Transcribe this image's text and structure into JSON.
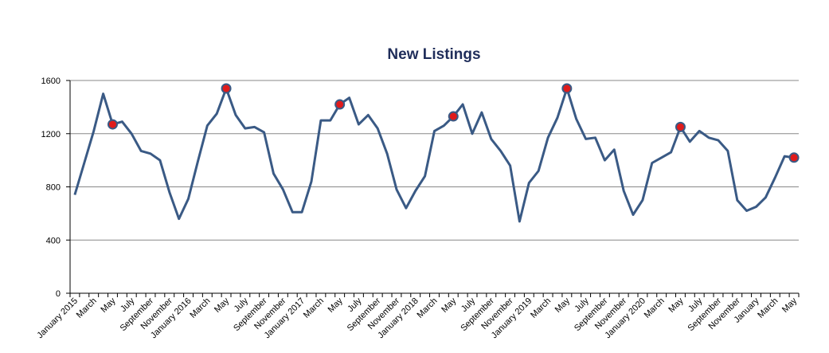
{
  "chart_data": {
    "type": "line",
    "title": "New Listings",
    "xlabel": "",
    "ylabel": "",
    "ylim": [
      0,
      1600
    ],
    "yticks": [
      "0",
      "400",
      "800",
      "1200",
      "1600"
    ],
    "grid": true,
    "line_color": "#3a5a85",
    "marker_color": "#e01b1b",
    "x": [
      "January 2015",
      "February 2015",
      "March 2015",
      "April 2015",
      "May 2015",
      "June 2015",
      "July 2015",
      "August 2015",
      "September 2015",
      "October 2015",
      "November 2015",
      "December 2015",
      "January 2016",
      "February 2016",
      "March 2016",
      "April 2016",
      "May 2016",
      "June 2016",
      "July 2016",
      "August 2016",
      "September 2016",
      "October 2016",
      "November 2016",
      "December 2016",
      "January 2017",
      "February 2017",
      "March 2017",
      "April 2017",
      "May 2017",
      "June 2017",
      "July 2017",
      "August 2017",
      "September 2017",
      "October 2017",
      "November 2017",
      "December 2017",
      "January 2018",
      "February 2018",
      "March 2018",
      "April 2018",
      "May 2018",
      "June 2018",
      "July 2018",
      "August 2018",
      "September 2018",
      "October 2018",
      "November 2018",
      "December 2018",
      "January 2019",
      "February 2019",
      "March 2019",
      "April 2019",
      "May 2019",
      "June 2019",
      "July 2019",
      "August 2019",
      "September 2019",
      "October 2019",
      "November 2019",
      "December 2019",
      "January 2020",
      "February 2020",
      "March 2020",
      "April 2020",
      "May 2020",
      "June 2020",
      "July 2020",
      "August 2020",
      "September 2020",
      "October 2020",
      "November 2020",
      "December 2020",
      "January 2021",
      "February 2021",
      "March 2021",
      "April 2021",
      "May 2021"
    ],
    "x_tick_labels": [
      "January 2015",
      "March",
      "May",
      "July",
      "September",
      "November",
      "January 2016",
      "March",
      "May",
      "July",
      "September",
      "November",
      "January 2017",
      "March",
      "May",
      "July",
      "September",
      "November",
      "January 2018",
      "March",
      "May",
      "July",
      "September",
      "November",
      "January 2019",
      "March",
      "May",
      "July",
      "September",
      "November",
      "January 2020",
      "March",
      "May",
      "July",
      "September",
      "November",
      "January",
      "March",
      "May"
    ],
    "series": [
      {
        "values": [
          740,
          980,
          1220,
          1500,
          1270,
          1290,
          1200,
          1070,
          1050,
          1000,
          760,
          560,
          710,
          990,
          1260,
          1350,
          1540,
          1340,
          1240,
          1250,
          1210,
          900,
          780,
          610,
          610,
          840,
          1300,
          1300,
          1420,
          1470,
          1270,
          1340,
          1240,
          1050,
          780,
          640,
          770,
          880,
          1220,
          1260,
          1330,
          1420,
          1200,
          1360,
          1160,
          1070,
          960,
          540,
          830,
          920,
          1170,
          1320,
          1540,
          1310,
          1160,
          1170,
          1000,
          1080,
          770,
          590,
          700,
          980,
          1020,
          1060,
          1250,
          1140,
          1220,
          1170,
          1150,
          1070,
          700,
          620,
          650,
          720,
          870,
          1030,
          1020
        ],
        "highlight_points": [
          "May 2015",
          "May 2016",
          "May 2017",
          "May 2018",
          "May 2019",
          "May 2020"
        ]
      }
    ]
  }
}
